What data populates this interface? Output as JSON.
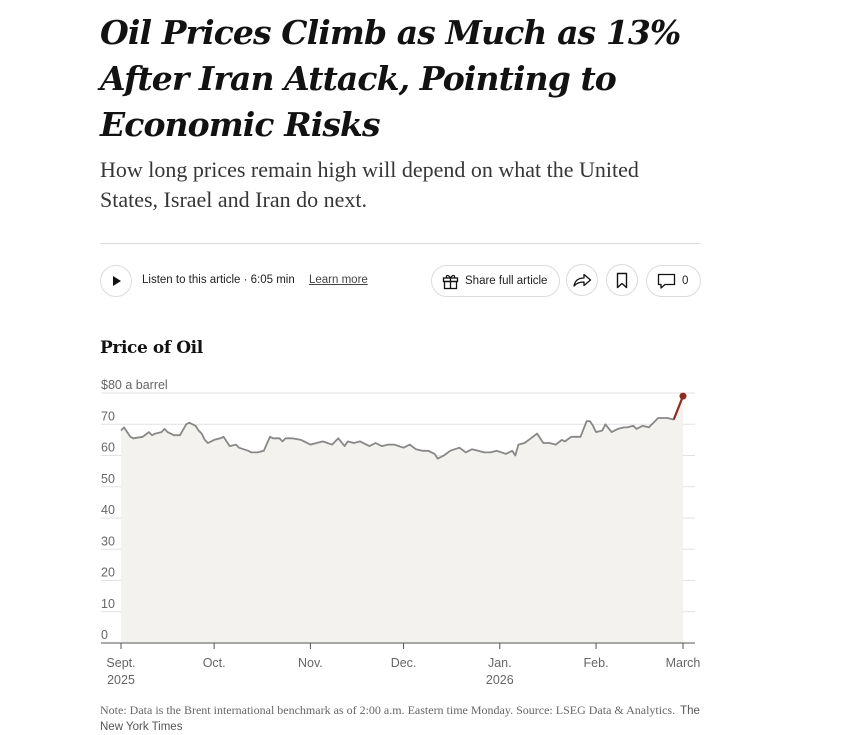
{
  "article": {
    "headline": "Oil Prices Climb as Much as 13% After Iran Attack, Pointing to Economic Risks",
    "summary": "How long prices remain high will depend on what the United States, Israel and Iran do next."
  },
  "toolbar": {
    "listen_text": "Listen to this article · 6:05 min",
    "learn_more": "Learn more",
    "share_label": "Share full article",
    "comment_count": "0",
    "icons": [
      "play-icon",
      "gift-icon",
      "forward-share-icon",
      "bookmark-icon",
      "comment-icon"
    ]
  },
  "chart_data": {
    "type": "line",
    "title": "Price of Oil",
    "unit_label": "$80 a barrel",
    "ylim": [
      0,
      80
    ],
    "y_ticks": [
      0,
      10,
      20,
      30,
      40,
      50,
      60,
      70
    ],
    "x_ticks": [
      {
        "label": "Sept.",
        "sublabel": "2025"
      },
      {
        "label": "Oct.",
        "sublabel": ""
      },
      {
        "label": "Nov.",
        "sublabel": ""
      },
      {
        "label": "Dec.",
        "sublabel": ""
      },
      {
        "label": "Jan.",
        "sublabel": "2026"
      },
      {
        "label": "Feb.",
        "sublabel": ""
      },
      {
        "label": "March",
        "sublabel": ""
      }
    ],
    "x_tick_days": [
      0,
      30,
      61,
      91,
      122,
      153,
      181
    ],
    "grid": true,
    "colors": {
      "line": "#888888",
      "area": "#f3f2ee",
      "highlight": "#8b2e22",
      "grid": "#e2e2e2"
    },
    "series": [
      {
        "days": [
          0,
          1,
          3,
          4,
          7,
          9,
          10,
          11,
          13,
          14,
          15,
          17,
          19,
          21,
          22,
          24,
          25,
          26,
          27,
          28,
          30,
          32,
          33,
          35,
          37,
          38,
          41,
          42,
          44,
          46,
          48,
          49,
          51,
          52,
          53,
          55,
          58,
          61,
          63,
          65,
          68,
          70,
          72,
          73,
          75,
          77,
          79,
          80,
          82,
          84,
          86,
          88,
          91,
          93,
          95,
          97,
          99,
          101,
          102,
          104,
          106,
          109,
          111,
          113,
          115,
          117,
          119,
          121,
          124,
          126,
          127,
          128,
          130,
          132,
          134,
          136,
          137,
          138,
          140,
          142,
          143,
          145,
          148,
          149,
          150,
          151,
          152,
          153,
          155,
          156,
          158,
          160,
          162,
          163,
          165,
          166,
          168,
          170,
          173,
          176,
          178
        ],
        "values": [
          68,
          69,
          66,
          65.5,
          66,
          67.5,
          66.5,
          67,
          67.5,
          68.5,
          67.5,
          66.5,
          66.5,
          70,
          70.5,
          69.5,
          68,
          67,
          65,
          64,
          65,
          65.5,
          66,
          63,
          63.5,
          62.5,
          61.5,
          61,
          61,
          61.5,
          66,
          65.5,
          65.5,
          64.5,
          65.5,
          65.5,
          65,
          63.5,
          64,
          64.5,
          63.5,
          65.5,
          63,
          64.5,
          64,
          64.5,
          63.5,
          63,
          64,
          63,
          63.5,
          63.5,
          62.5,
          63.5,
          62,
          61.5,
          61.5,
          60.5,
          59,
          60,
          61.5,
          62.5,
          61,
          62,
          61.5,
          61,
          61,
          61.5,
          60.5,
          61.5,
          60,
          63.5,
          64,
          65.5,
          67,
          64,
          64,
          64,
          63.5,
          65,
          64.5,
          66,
          66,
          68.5,
          71,
          71,
          69.5,
          67.5,
          68,
          70,
          67.5,
          68.5,
          69,
          69,
          69.5,
          68.5,
          69.5,
          69,
          72,
          72,
          71.5
        ]
      }
    ],
    "highlight": {
      "days": [
        178,
        181
      ],
      "values": [
        71.5,
        79
      ]
    }
  },
  "footer": {
    "note": "Note: Data is the Brent international benchmark as of 2:00 a.m. Eastern time Monday.  Source: LSEG Data & Analytics.",
    "credit": "The New York Times"
  }
}
